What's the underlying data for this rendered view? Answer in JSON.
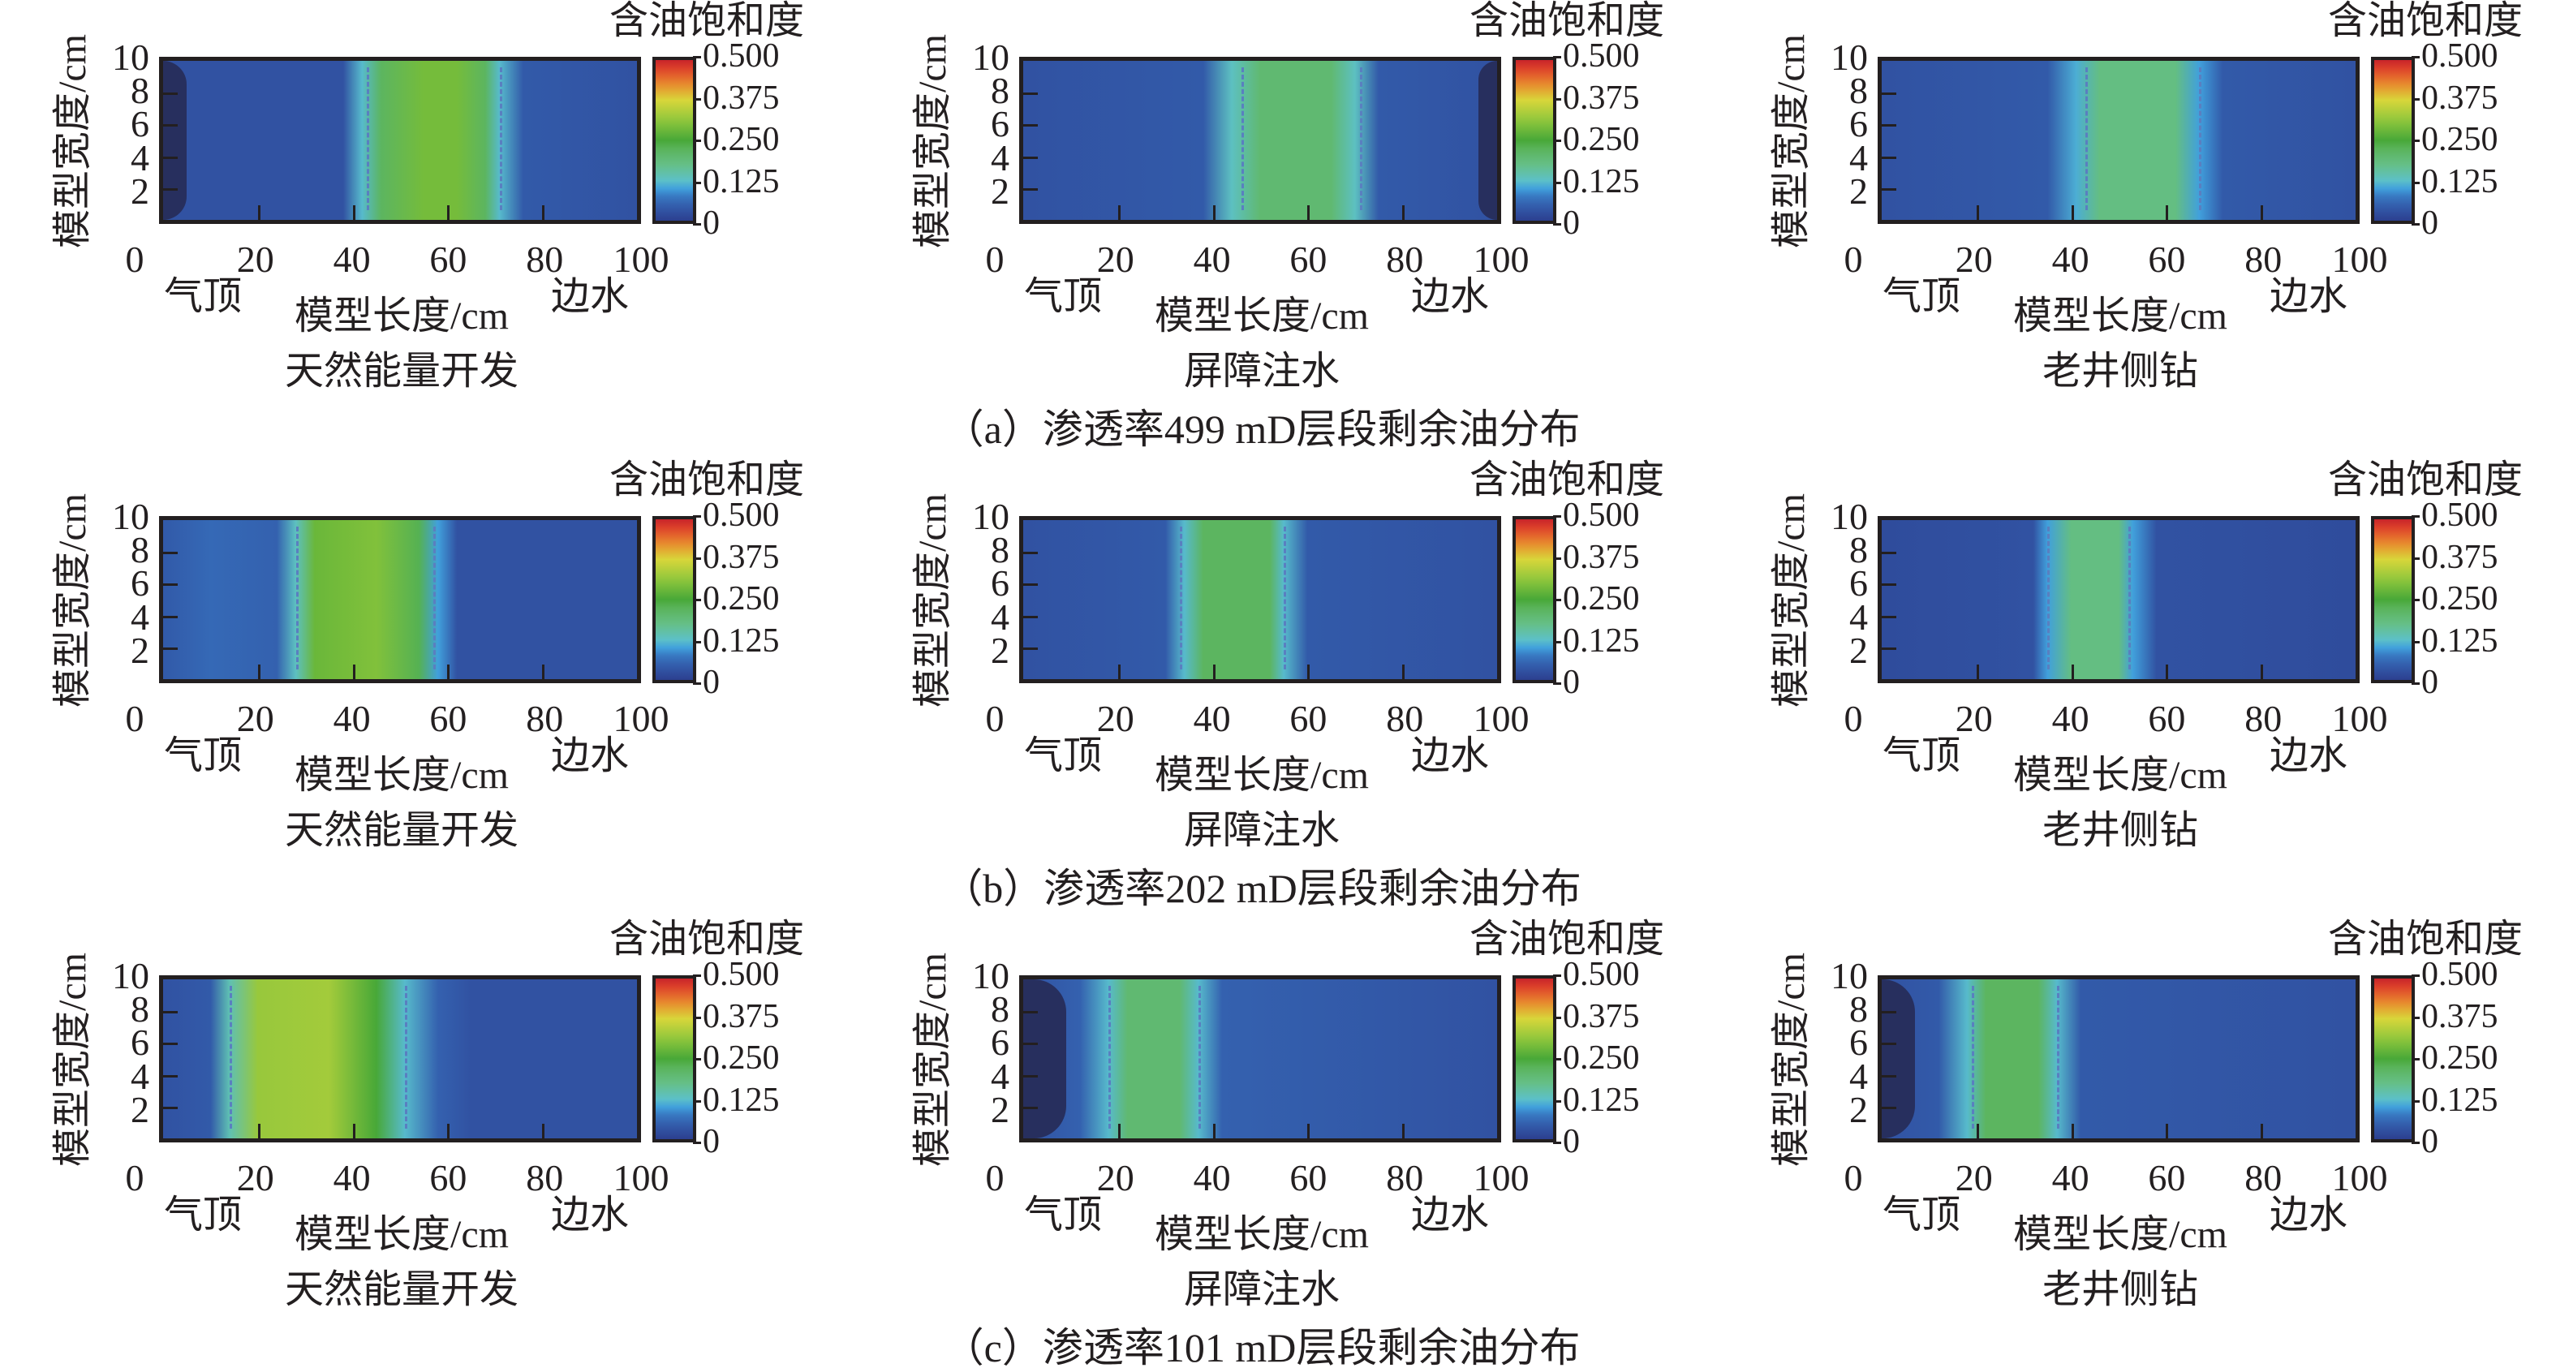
{
  "labels": {
    "colorbar_title": "含油饱和度",
    "x_axis": "模型长度/cm",
    "y_axis": "模型宽度/cm",
    "left_marker": "气顶",
    "right_marker": "边水",
    "x_ticks": [
      "0",
      "20",
      "40",
      "60",
      "80",
      "100"
    ],
    "y_ticks": [
      "10",
      "8",
      "6",
      "4",
      "2"
    ],
    "colorbar_ticks": [
      "0.500",
      "0.375",
      "0.250",
      "0.125",
      "0"
    ]
  },
  "chart_data": {
    "type": "heatmap",
    "xlim": [
      0,
      100
    ],
    "ylim": [
      0,
      10
    ],
    "colorbar_range": [
      0,
      0.5
    ],
    "colormap": [
      {
        "v": 0,
        "c": "#2c3f8f"
      },
      {
        "v": 0.03,
        "c": "#3152a2"
      },
      {
        "v": 0.07,
        "c": "#3670bc"
      },
      {
        "v": 0.1,
        "c": "#41a0dc"
      },
      {
        "v": 0.125,
        "c": "#5cc0c8"
      },
      {
        "v": 0.17,
        "c": "#66c08a"
      },
      {
        "v": 0.22,
        "c": "#5cb560"
      },
      {
        "v": 0.25,
        "c": "#48a838"
      },
      {
        "v": 0.31,
        "c": "#8cc63c"
      },
      {
        "v": 0.375,
        "c": "#d8d63a"
      },
      {
        "v": 0.42,
        "c": "#e8922e"
      },
      {
        "v": 0.47,
        "c": "#e0462a"
      },
      {
        "v": 0.5,
        "c": "#c8242a"
      }
    ],
    "rows": [
      {
        "caption": "（a）渗透率499 mD层段剩余油分布"
      },
      {
        "caption": "（b）渗透率202 mD层段剩余油分布"
      },
      {
        "caption": "（c）渗透率101 mD层段剩余油分布"
      }
    ],
    "panels": [
      {
        "row": 0,
        "col": 0,
        "title": "天然能量开发",
        "dashes": [
          43,
          71
        ],
        "dark": [
          0,
          5
        ],
        "profile": [
          [
            0,
            0.03
          ],
          [
            38,
            0.03
          ],
          [
            42,
            0.12
          ],
          [
            46,
            0.22
          ],
          [
            55,
            0.29
          ],
          [
            62,
            0.29
          ],
          [
            68,
            0.22
          ],
          [
            71,
            0.12
          ],
          [
            76,
            0.04
          ],
          [
            100,
            0.03
          ]
        ]
      },
      {
        "row": 0,
        "col": 1,
        "title": "屏障注水",
        "dashes": [
          46,
          71
        ],
        "dark": [
          96,
          100
        ],
        "profile": [
          [
            0,
            0.03
          ],
          [
            38,
            0.04
          ],
          [
            44,
            0.13
          ],
          [
            50,
            0.2
          ],
          [
            65,
            0.2
          ],
          [
            70,
            0.13
          ],
          [
            75,
            0.04
          ],
          [
            100,
            0.03
          ]
        ]
      },
      {
        "row": 0,
        "col": 2,
        "title": "老井侧钻",
        "dashes": [
          43,
          67
        ],
        "dark": null,
        "profile": [
          [
            0,
            0.03
          ],
          [
            35,
            0.04
          ],
          [
            41,
            0.11
          ],
          [
            46,
            0.18
          ],
          [
            62,
            0.18
          ],
          [
            67,
            0.1
          ],
          [
            72,
            0.04
          ],
          [
            100,
            0.03
          ]
        ]
      },
      {
        "row": 1,
        "col": 0,
        "title": "天然能量开发",
        "dashes": [
          28,
          57
        ],
        "dark": null,
        "profile": [
          [
            0,
            0.04
          ],
          [
            10,
            0.06
          ],
          [
            24,
            0.05
          ],
          [
            28,
            0.13
          ],
          [
            32,
            0.28
          ],
          [
            45,
            0.3
          ],
          [
            54,
            0.23
          ],
          [
            58,
            0.1
          ],
          [
            62,
            0.03
          ],
          [
            100,
            0.03
          ]
        ]
      },
      {
        "row": 1,
        "col": 1,
        "title": "屏障注水",
        "dashes": [
          33,
          55
        ],
        "dark": null,
        "profile": [
          [
            0,
            0.03
          ],
          [
            30,
            0.04
          ],
          [
            34,
            0.12
          ],
          [
            38,
            0.22
          ],
          [
            52,
            0.22
          ],
          [
            55,
            0.12
          ],
          [
            60,
            0.04
          ],
          [
            100,
            0.03
          ]
        ]
      },
      {
        "row": 1,
        "col": 2,
        "title": "老井侧钻",
        "dashes": [
          35,
          52
        ],
        "dark": null,
        "profile": [
          [
            0,
            0.02
          ],
          [
            32,
            0.03
          ],
          [
            35,
            0.1
          ],
          [
            40,
            0.18
          ],
          [
            50,
            0.18
          ],
          [
            53,
            0.1
          ],
          [
            58,
            0.03
          ],
          [
            100,
            0.02
          ]
        ]
      },
      {
        "row": 2,
        "col": 0,
        "title": "天然能量开发",
        "dashes": [
          14,
          51
        ],
        "dark": null,
        "profile": [
          [
            0,
            0.03
          ],
          [
            10,
            0.04
          ],
          [
            14,
            0.14
          ],
          [
            20,
            0.32
          ],
          [
            35,
            0.33
          ],
          [
            45,
            0.25
          ],
          [
            51,
            0.12
          ],
          [
            58,
            0.05
          ],
          [
            65,
            0.03
          ],
          [
            100,
            0.03
          ]
        ]
      },
      {
        "row": 2,
        "col": 1,
        "title": "屏障注水",
        "dashes": [
          18,
          37
        ],
        "dark": [
          0,
          9
        ],
        "profile": [
          [
            0,
            0.03
          ],
          [
            12,
            0.05
          ],
          [
            18,
            0.12
          ],
          [
            22,
            0.2
          ],
          [
            33,
            0.2
          ],
          [
            37,
            0.12
          ],
          [
            42,
            0.05
          ],
          [
            100,
            0.03
          ]
        ]
      },
      {
        "row": 2,
        "col": 2,
        "title": "老井侧钻",
        "dashes": [
          19,
          37
        ],
        "dark": [
          0,
          7
        ],
        "profile": [
          [
            0,
            0.03
          ],
          [
            12,
            0.04
          ],
          [
            18,
            0.12
          ],
          [
            22,
            0.22
          ],
          [
            33,
            0.22
          ],
          [
            37,
            0.12
          ],
          [
            42,
            0.04
          ],
          [
            100,
            0.03
          ]
        ]
      }
    ]
  }
}
